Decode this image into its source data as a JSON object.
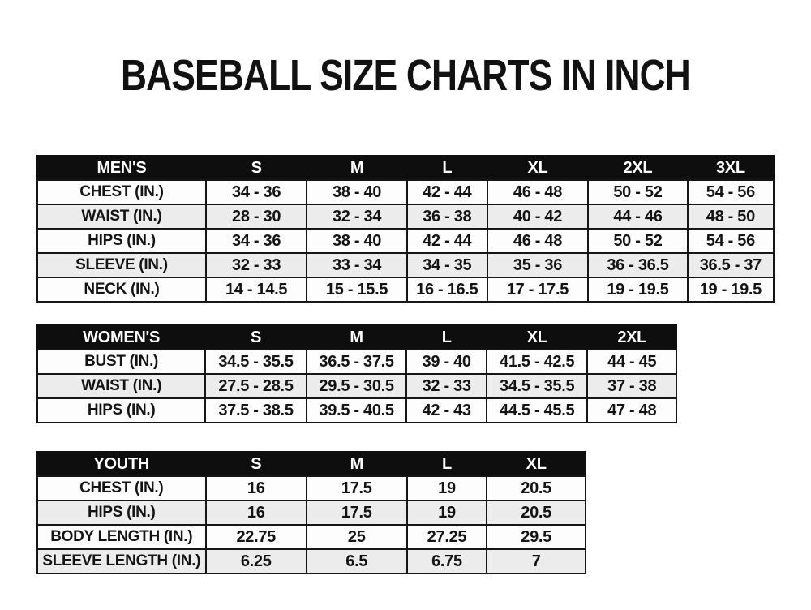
{
  "title": "BASEBALL SIZE CHARTS IN INCH",
  "colors": {
    "header_bg": "#0e0e0e",
    "header_text": "#ffffff",
    "row_alt_bg": "#ececec",
    "border": "#161616",
    "text": "#141414"
  },
  "chart_data": [
    {
      "type": "table",
      "name": "mens",
      "title": "MEN'S",
      "header": [
        "MEN'S",
        "S",
        "M",
        "L",
        "XL",
        "2XL",
        "3XL"
      ],
      "rows": [
        {
          "label": "CHEST (IN.)",
          "values": [
            "34 - 36",
            "38 - 40",
            "42 - 44",
            "46 - 48",
            "50 - 52",
            "54 - 56"
          ]
        },
        {
          "label": "WAIST (IN.)",
          "values": [
            "28 - 30",
            "32 - 34",
            "36 - 38",
            "40 - 42",
            "44 - 46",
            "48 - 50"
          ]
        },
        {
          "label": "HIPS (IN.)",
          "values": [
            "34 - 36",
            "38 - 40",
            "42 - 44",
            "46 - 48",
            "50 - 52",
            "54 - 56"
          ]
        },
        {
          "label": "SLEEVE (IN.)",
          "values": [
            "32 - 33",
            "33 - 34",
            "34 - 35",
            "35 - 36",
            "36 - 36.5",
            "36.5 - 37"
          ]
        },
        {
          "label": "NECK (IN.)",
          "values": [
            "14 - 14.5",
            "15 - 15.5",
            "16 - 16.5",
            "17 - 17.5",
            "19 - 19.5",
            "19 - 19.5"
          ]
        }
      ]
    },
    {
      "type": "table",
      "name": "womens",
      "title": "WOMEN'S",
      "header": [
        "WOMEN'S",
        "S",
        "M",
        "L",
        "XL",
        "2XL"
      ],
      "rows": [
        {
          "label": "BUST (IN.)",
          "values": [
            "34.5 - 35.5",
            "36.5 - 37.5",
            "39 - 40",
            "41.5 - 42.5",
            "44 - 45"
          ]
        },
        {
          "label": "WAIST (IN.)",
          "values": [
            "27.5 - 28.5",
            "29.5 - 30.5",
            "32 - 33",
            "34.5 - 35.5",
            "37 - 38"
          ]
        },
        {
          "label": "HIPS (IN.)",
          "values": [
            "37.5 - 38.5",
            "39.5 - 40.5",
            "42 - 43",
            "44.5 - 45.5",
            "47 - 48"
          ]
        }
      ]
    },
    {
      "type": "table",
      "name": "youth",
      "title": "YOUTH",
      "header": [
        "YOUTH",
        "S",
        "M",
        "L",
        "XL"
      ],
      "rows": [
        {
          "label": "CHEST (IN.)",
          "values": [
            "16",
            "17.5",
            "19",
            "20.5"
          ]
        },
        {
          "label": "HIPS (IN.)",
          "values": [
            "16",
            "17.5",
            "19",
            "20.5"
          ]
        },
        {
          "label": "BODY LENGTH (IN.)",
          "values": [
            "22.75",
            "25",
            "27.25",
            "29.5"
          ]
        },
        {
          "label": "SLEEVE LENGTH (IN.)",
          "values": [
            "6.25",
            "6.5",
            "6.75",
            "7"
          ]
        }
      ]
    }
  ]
}
